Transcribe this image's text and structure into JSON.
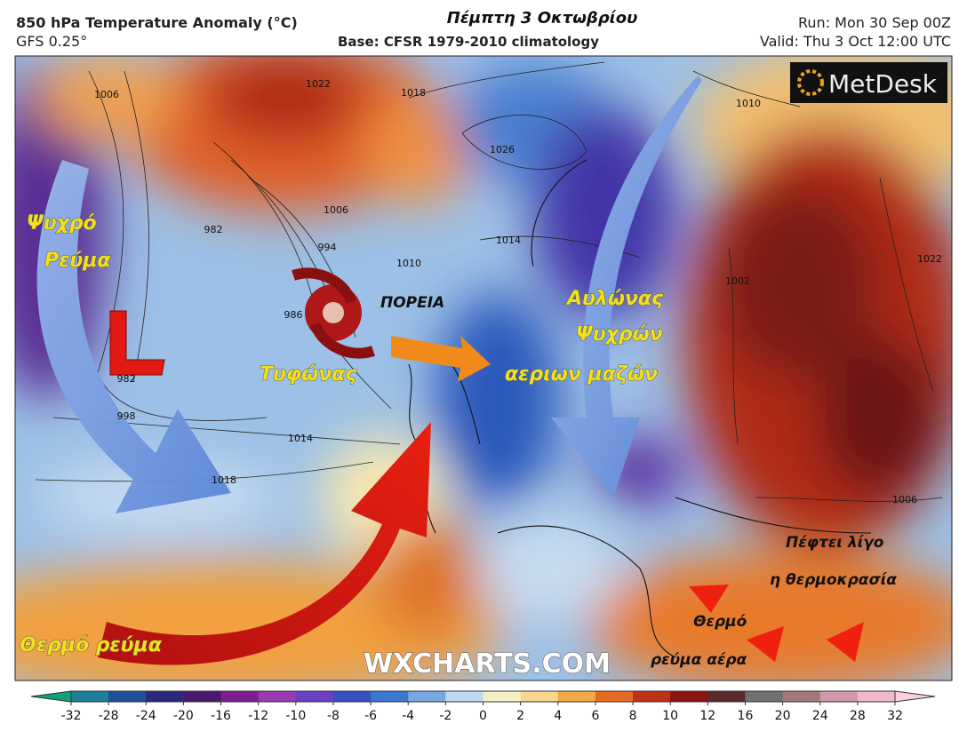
{
  "header": {
    "title": "850 hPa Temperature Anomaly (°C)",
    "model": "GFS 0.25°",
    "date_label": "Πέμπτη 3 Οκτωβρίου",
    "base": "Base: CFSR 1979-2010 climatology",
    "run": "Run: Mon 30 Sep 00Z",
    "valid": "Valid: Thu 3 Oct 12:00 UTC"
  },
  "logo": "MetDesk",
  "watermark": "WXCHARTS.COM",
  "annotations": [
    "Ψυχρό",
    "Ρεύμα",
    "L",
    "ΠΟΡΕΙΑ",
    "Τυφώνας",
    "Αυλώνας",
    "Ψυχρών",
    "αεριων μαζών",
    "Θερμό ρεύμα",
    "Πέφτει λίγο",
    "η θερμοκρασία",
    "Θερμό",
    "ρεύμα αέρα"
  ],
  "contour_labels": [
    "1006",
    "1022",
    "1018",
    "1026",
    "1006",
    "982",
    "994",
    "1010",
    "986",
    "982",
    "998",
    "1014",
    "1018",
    "1014",
    "1002",
    "1022",
    "1006",
    "1010"
  ],
  "colorbar": {
    "ticks": [
      -32,
      -28,
      -24,
      -20,
      -16,
      -12,
      -10,
      -8,
      -6,
      -4,
      -2,
      0,
      2,
      4,
      6,
      8,
      10,
      12,
      16,
      20,
      24,
      28,
      32
    ],
    "colors": [
      "#1f7f9a",
      "#1f4f95",
      "#2a2a7a",
      "#4a1a6e",
      "#7a2090",
      "#9a3ab0",
      "#6a40c0",
      "#3a50c0",
      "#3a78d0",
      "#78a8e0",
      "#c0d8f0",
      "#f5efc8",
      "#f8d690",
      "#f0a848",
      "#e46a24",
      "#c03216",
      "#8a1410",
      "#5a2a2a",
      "#707070",
      "#a07878",
      "#d098a8",
      "#f0b8c8"
    ],
    "low_color": "#10a080",
    "high_color": "#f8d0e0"
  }
}
